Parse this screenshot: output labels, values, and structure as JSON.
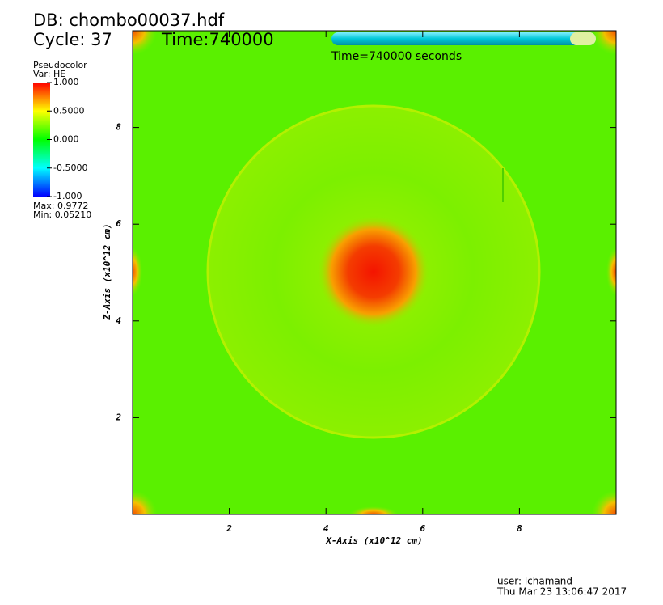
{
  "chart_data": {
    "type": "pseudocolor",
    "db_label": "DB: chombo00037.hdf",
    "cycle_label": "Cycle: 37",
    "time_label": "Time:740000",
    "slider_label": "Time=740000 seconds",
    "xlabel": "X-Axis (x10^12 cm)",
    "ylabel": "Z-Axis (x10^12 cm)",
    "xlim": [
      0,
      10
    ],
    "ylim": [
      0,
      10
    ],
    "xticks": [
      2,
      4,
      6,
      8
    ],
    "yticks": [
      2,
      4,
      6,
      8
    ],
    "legend": {
      "title": "Pseudocolor",
      "var": "Var: HE",
      "lim": [
        -1,
        1
      ],
      "ticks": [
        {
          "value": 1,
          "label": "1.000"
        },
        {
          "value": 0.5,
          "label": "0.5000"
        },
        {
          "value": 0,
          "label": "0.000"
        },
        {
          "value": -0.5,
          "label": "-0.5000"
        },
        {
          "value": -1,
          "label": "-1.000"
        }
      ],
      "max": "Max: 0.9772",
      "min": "Min: 0.05210"
    },
    "user": "user: lchamand",
    "date": "Thu Mar 23 13:06:47 2017"
  }
}
